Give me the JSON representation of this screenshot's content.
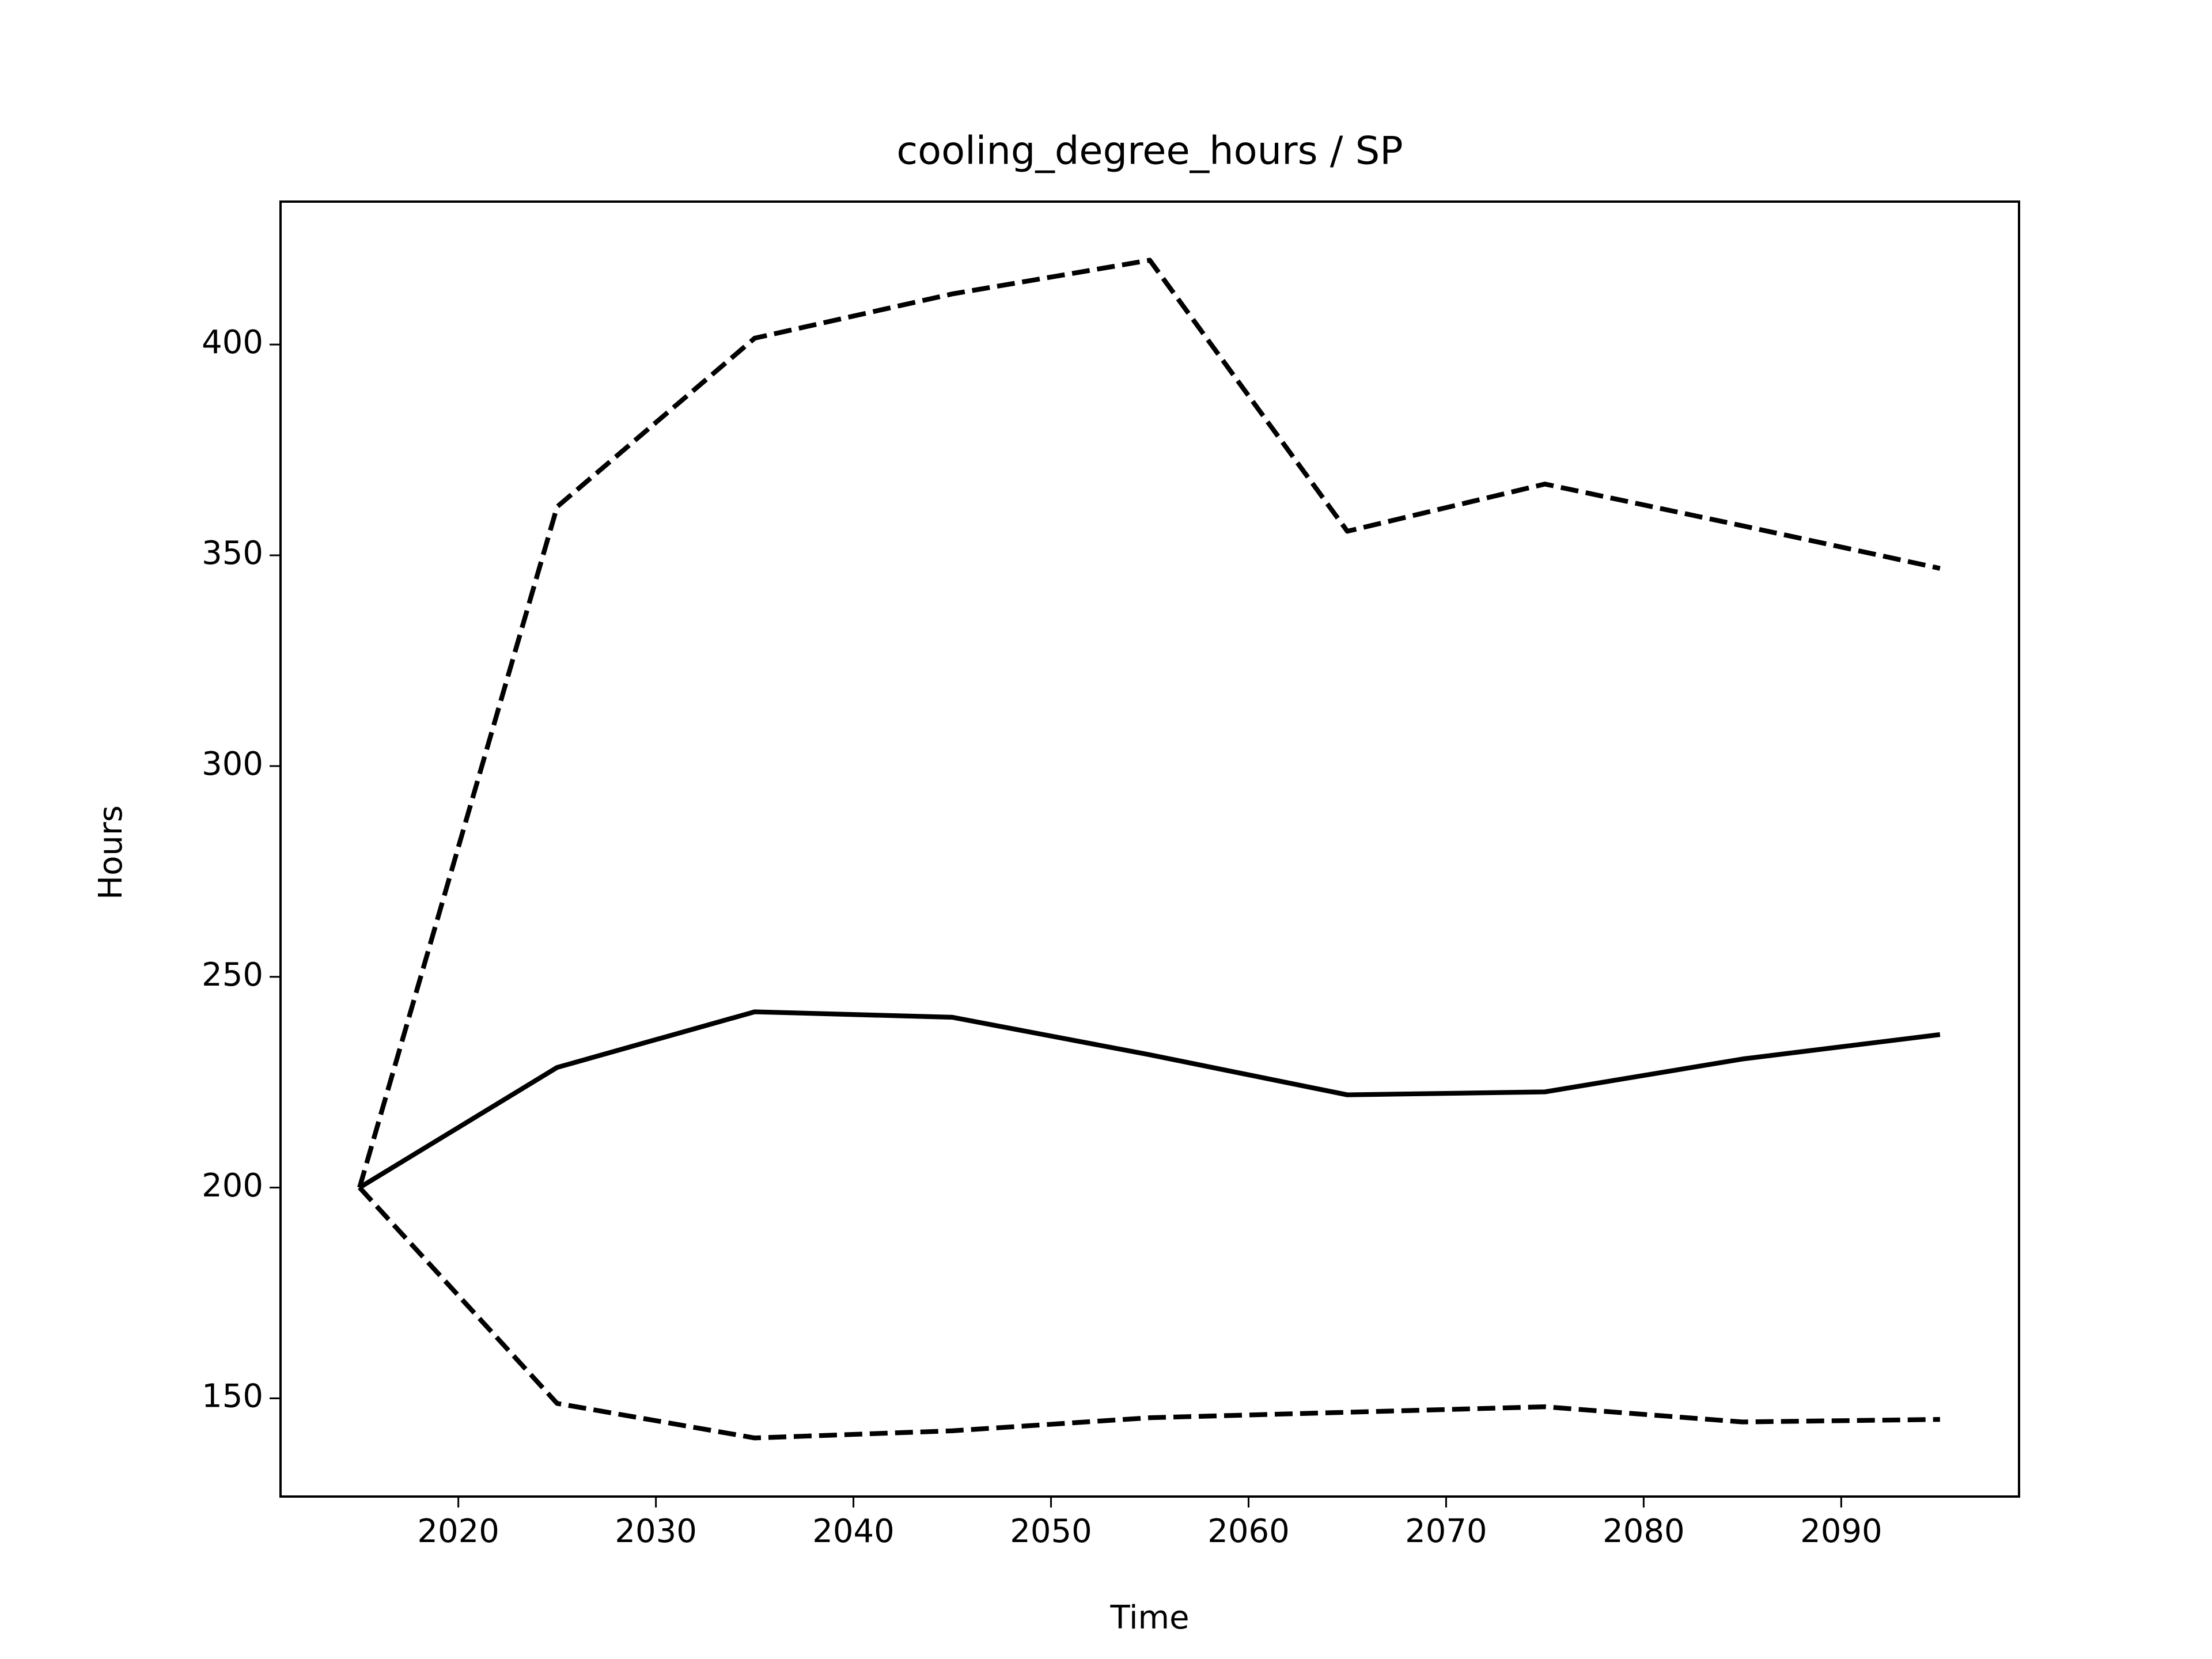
{
  "chart_data": {
    "type": "line",
    "title": "cooling_degree_hours / SP",
    "xlabel": "Time",
    "ylabel": "Hours",
    "x": [
      2015,
      2025,
      2035,
      2045,
      2055,
      2065,
      2075,
      2085,
      2095
    ],
    "series": [
      {
        "color": "#000000",
        "style": "solid",
        "values": [
          200,
          228.5,
          241.7,
          240.4,
          231.5,
          222,
          222.7,
          230.5,
          236.3
        ]
      },
      {
        "color": "#000000",
        "style": "dashed",
        "values": [
          200,
          361.5,
          401.5,
          412,
          420,
          355.7,
          366.9,
          357,
          346.9
        ]
      },
      {
        "color": "#000000",
        "style": "dashed",
        "values": [
          200,
          148.8,
          140.6,
          142.3,
          145.4,
          146.7,
          148,
          144.4,
          145
        ]
      }
    ],
    "xlim": [
      2011,
      2099
    ],
    "ylim": [
      126.7,
      433.9
    ],
    "xticks": [
      2020,
      2030,
      2040,
      2050,
      2060,
      2070,
      2080,
      2090
    ],
    "yticks": [
      150,
      200,
      250,
      300,
      350,
      400
    ]
  }
}
